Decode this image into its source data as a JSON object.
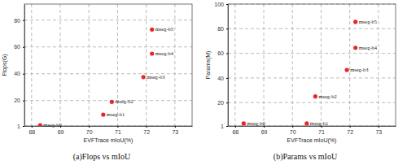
{
  "chart_data": [
    {
      "type": "scatter",
      "title": "(a)Flops vs mIoU",
      "x_label": "EVFTrace mIoU(%)",
      "y_label": "Flops(G)",
      "x": [
        68.3,
        70.5,
        70.8,
        71.9,
        72.2,
        72.2
      ],
      "values": [
        1.5,
        9.5,
        19,
        37.5,
        55,
        73
      ],
      "labels": [
        "mseg-b0",
        "mseg-b1",
        "mseg-b2",
        "mseg-b3",
        "mseg-b4",
        "mseg-b5"
      ],
      "color": "#e8262a",
      "marker": "circle",
      "xlim": [
        67.75,
        73.6
      ],
      "xticks": [
        68,
        69,
        70,
        71,
        72,
        73
      ],
      "ylim": [
        1,
        92
      ],
      "yticks": [
        1,
        20,
        40,
        60,
        80
      ],
      "grid": true
    },
    {
      "type": "scatter",
      "title": "(b)Params vs mIoU",
      "x_label": "EVFTrace mIoU(%)",
      "y_label": "Params(M)",
      "x": [
        68.3,
        70.5,
        70.8,
        71.9,
        72.2,
        72.2
      ],
      "values": [
        3,
        3,
        25,
        46.5,
        64.5,
        85.5
      ],
      "labels": [
        "mseg-b0",
        "mseg-b1",
        "mseg-b2",
        "mseg-b3",
        "mseg-b4",
        "mseg-b5"
      ],
      "color": "#e8262a",
      "marker": "circle",
      "xlim": [
        67.75,
        73.6
      ],
      "xticks": [
        68,
        69,
        70,
        71,
        72,
        73
      ],
      "ylim": [
        1,
        100
      ],
      "yticks": [
        1,
        20,
        40,
        60,
        80,
        100
      ],
      "grid": true
    }
  ]
}
